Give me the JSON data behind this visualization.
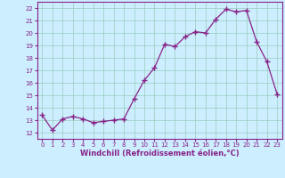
{
  "x": [
    0,
    1,
    2,
    3,
    4,
    5,
    6,
    7,
    8,
    9,
    10,
    11,
    12,
    13,
    14,
    15,
    16,
    17,
    18,
    19,
    20,
    21,
    22,
    23
  ],
  "y": [
    13.4,
    12.2,
    13.1,
    13.3,
    13.1,
    12.8,
    12.9,
    13.0,
    13.1,
    14.7,
    16.2,
    17.2,
    19.1,
    18.9,
    19.7,
    20.1,
    20.0,
    21.1,
    21.9,
    21.7,
    21.8,
    19.3,
    17.7,
    15.1
  ],
  "line_color": "#882288",
  "marker": "+",
  "marker_size": 4,
  "marker_lw": 1.0,
  "line_width": 0.9,
  "bg_color": "#cceeff",
  "grid_color": "#99ccbb",
  "xlabel": "Windchill (Refroidissement éolien,°C)",
  "xlim": [
    -0.5,
    23.5
  ],
  "ylim": [
    11.5,
    22.5
  ],
  "yticks": [
    12,
    13,
    14,
    15,
    16,
    17,
    18,
    19,
    20,
    21,
    22
  ],
  "xticks": [
    0,
    1,
    2,
    3,
    4,
    5,
    6,
    7,
    8,
    9,
    10,
    11,
    12,
    13,
    14,
    15,
    16,
    17,
    18,
    19,
    20,
    21,
    22,
    23
  ],
  "tick_fontsize": 5.0,
  "xlabel_fontsize": 6.0,
  "label_color": "#882288",
  "spine_color": "#882288"
}
